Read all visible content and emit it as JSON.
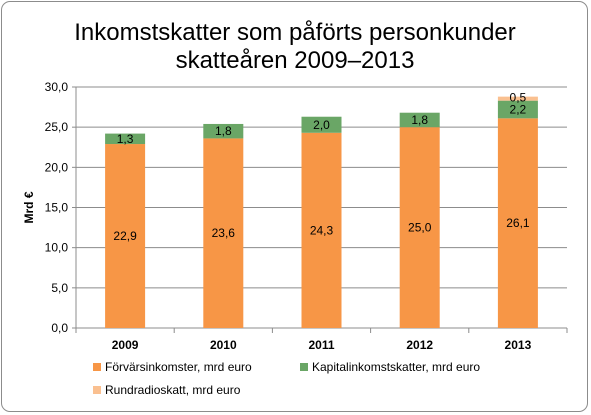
{
  "chart_data": {
    "type": "bar",
    "stacked": true,
    "title": "Inkomstskatter som påförts personkunder skatteåren 2009–2013",
    "title_lines": [
      "Inkomstskatter som påförts personkunder",
      "skatteåren 2009–2013"
    ],
    "xlabel": "",
    "ylabel": "Mrd €",
    "ylim": [
      0,
      30
    ],
    "yticks": [
      0,
      5,
      10,
      15,
      20,
      25,
      30
    ],
    "ytick_labels": [
      "0,0",
      "5,0",
      "10,0",
      "15,0",
      "20,0",
      "25,0",
      "30,0"
    ],
    "grid": true,
    "legend_position": "bottom",
    "categories": [
      "2009",
      "2010",
      "2011",
      "2012",
      "2013"
    ],
    "series": [
      {
        "name": "Förvärsinkomster, mrd euro",
        "color": "#f79646",
        "values": [
          22.9,
          23.6,
          24.3,
          25.0,
          26.1
        ],
        "labels": [
          "22,9",
          "23,6",
          "24,3",
          "25,0",
          "26,1"
        ]
      },
      {
        "name": "Kapitalinkomstskatter, mrd euro",
        "color": "#6aa666",
        "values": [
          1.3,
          1.8,
          2.0,
          1.8,
          2.2
        ],
        "labels": [
          "1,3",
          "1,8",
          "2,0",
          "1,8",
          "2,2"
        ]
      },
      {
        "name": "Rundradioskatt, mrd euro",
        "color": "#fac090",
        "values": [
          0,
          0,
          0,
          0,
          0.5
        ],
        "labels": [
          "",
          "",
          "",
          "",
          "0,5"
        ]
      }
    ]
  }
}
